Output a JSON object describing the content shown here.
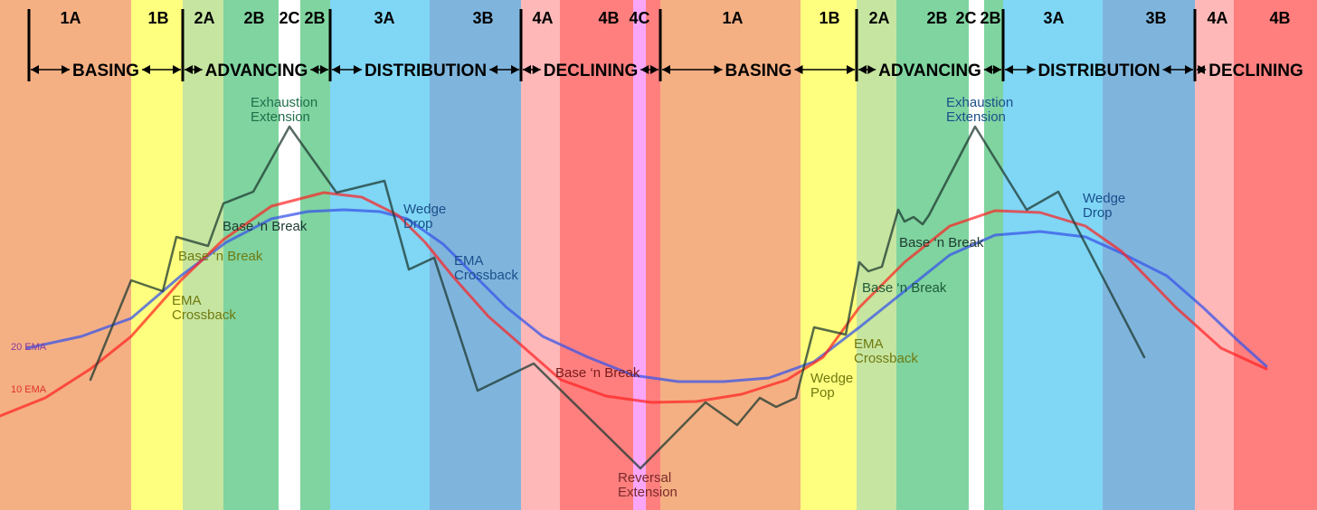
{
  "stages": [
    "1A",
    "1B",
    "2A",
    "2B",
    "2C",
    "2B",
    "3A",
    "3B",
    "4A",
    "4B",
    "4C",
    "1A",
    "1B",
    "2A",
    "2B",
    "2C",
    "2B",
    "3A",
    "3B",
    "4A",
    "4B"
  ],
  "phases": [
    "BASING",
    "ADVANCING",
    "DISTRIBUTION",
    "DECLINING",
    "BASING",
    "ADVANCING",
    "DISTRIBUTION",
    "DECLINING"
  ],
  "annotations": [
    {
      "lines": [
        "Exhaustion",
        "Extension"
      ]
    },
    {
      "lines": [
        "Base ‘n Break"
      ]
    },
    {
      "lines": [
        "Base ‘n Break"
      ]
    },
    {
      "lines": [
        "EMA",
        "Crossback"
      ]
    },
    {
      "lines": [
        "Wedge",
        "Drop"
      ]
    },
    {
      "lines": [
        "EMA",
        "Crossback"
      ]
    },
    {
      "lines": [
        "Base ‘n Break"
      ]
    },
    {
      "lines": [
        "Reversal",
        "Extension"
      ]
    },
    {
      "lines": [
        "Wedge",
        "Pop"
      ]
    },
    {
      "lines": [
        "EMA",
        "Crossback"
      ]
    },
    {
      "lines": [
        "Base ‘n Break"
      ]
    },
    {
      "lines": [
        "Base ‘n Break"
      ]
    },
    {
      "lines": [
        "Exhaustion",
        "Extension"
      ]
    },
    {
      "lines": [
        "Wedge",
        "Drop"
      ]
    }
  ],
  "ema_labels": [
    "20 EMA",
    "10 EMA"
  ]
}
